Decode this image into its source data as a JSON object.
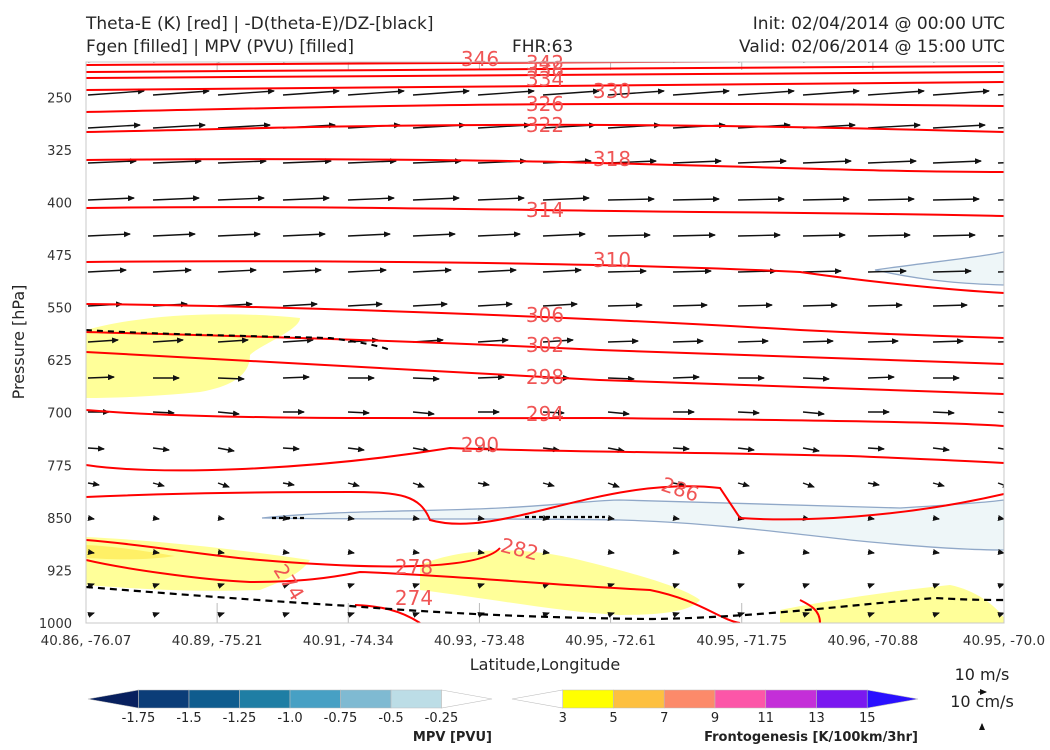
{
  "header": {
    "line1_left": "Theta-E (K) [red] | -D(theta-E)/DZ-[black]",
    "line2_left": "Fgen [filled] | MPV (PVU) [filled]",
    "fhr": "FHR:63",
    "init": "Init: 02/04/2014 @ 00:00 UTC",
    "valid": "Valid: 02/06/2014 @ 15:00 UTC"
  },
  "chart_data": {
    "type": "cross-section",
    "xlabel": "Latitude,Longitude",
    "ylabel": "Pressure [hPa]",
    "x_ticks": [
      "40.86, -76.07",
      "40.89, -75.21",
      "40.91, -74.34",
      "40.93, -73.48",
      "40.95, -72.61",
      "40.95, -71.75",
      "40.96, -70.88",
      "40.95, -70.0"
    ],
    "y_ticks": [
      250,
      325,
      400,
      475,
      550,
      625,
      700,
      775,
      850,
      925,
      1000
    ],
    "ylim": [
      1000,
      200
    ],
    "theta_e_contour_labels": [
      "346",
      "342",
      "338",
      "334",
      "330",
      "326",
      "322",
      "318",
      "314",
      "310",
      "306",
      "302",
      "298",
      "294",
      "290",
      "286",
      "282",
      "278",
      "274",
      "274"
    ],
    "contour_color": "#ff0000",
    "reference_vectors": [
      "10 m/s",
      "10 cm/s"
    ],
    "mpv_colorbar": {
      "title": "MPV [PVU]",
      "ticks": [
        "-1.75",
        "-1.5",
        "-1.25",
        "-1.0",
        "-0.75",
        "-0.5",
        "-0.25"
      ],
      "colors": [
        "#08205e",
        "#0b3d78",
        "#0f5c8e",
        "#1f7ea4",
        "#47a0c4",
        "#7fbad2",
        "#bcdde6",
        "#ffffff"
      ]
    },
    "fgen_colorbar": {
      "title": "Frontogenesis [K/100km/3hr]",
      "ticks": [
        "3",
        "5",
        "7",
        "9",
        "11",
        "13",
        "15"
      ],
      "colors": [
        "#ffffff",
        "#ffff00",
        "#fdc040",
        "#fc8a6a",
        "#fc56a8",
        "#c42fd8",
        "#7a18f0",
        "#2a10ff"
      ]
    },
    "grid": true
  }
}
